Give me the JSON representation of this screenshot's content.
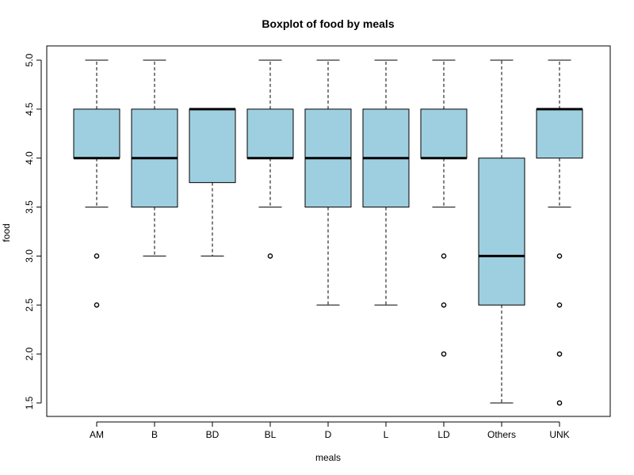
{
  "chart_data": {
    "type": "boxplot",
    "title": "Boxplot of food by meals",
    "xlabel": "meals",
    "ylabel": "food",
    "ylim": [
      1.5,
      5.0
    ],
    "yticks": [
      "1.5",
      "2.0",
      "2.5",
      "3.0",
      "3.5",
      "4.0",
      "4.5",
      "5.0"
    ],
    "box_color": "#9ecfe0",
    "categories": [
      "AM",
      "B",
      "BD",
      "BL",
      "D",
      "L",
      "LD",
      "Others",
      "UNK"
    ],
    "boxes": [
      {
        "label": "AM",
        "whisker_low": 3.5,
        "q1": 4.0,
        "median": 4.0,
        "q3": 4.5,
        "whisker_high": 5.0,
        "outliers": [
          3.0,
          2.5
        ]
      },
      {
        "label": "B",
        "whisker_low": 3.0,
        "q1": 3.5,
        "median": 4.0,
        "q3": 4.5,
        "whisker_high": 5.0,
        "outliers": []
      },
      {
        "label": "BD",
        "whisker_low": 3.0,
        "q1": 3.75,
        "median": 4.5,
        "q3": 4.5,
        "whisker_high": 4.5,
        "outliers": []
      },
      {
        "label": "BL",
        "whisker_low": 3.5,
        "q1": 4.0,
        "median": 4.0,
        "q3": 4.5,
        "whisker_high": 5.0,
        "outliers": [
          3.0
        ]
      },
      {
        "label": "D",
        "whisker_low": 2.5,
        "q1": 3.5,
        "median": 4.0,
        "q3": 4.5,
        "whisker_high": 5.0,
        "outliers": []
      },
      {
        "label": "L",
        "whisker_low": 2.5,
        "q1": 3.5,
        "median": 4.0,
        "q3": 4.5,
        "whisker_high": 5.0,
        "outliers": []
      },
      {
        "label": "LD",
        "whisker_low": 3.5,
        "q1": 4.0,
        "median": 4.0,
        "q3": 4.5,
        "whisker_high": 5.0,
        "outliers": [
          3.0,
          2.5,
          2.0
        ]
      },
      {
        "label": "Others",
        "whisker_low": 1.5,
        "q1": 2.5,
        "median": 3.0,
        "q3": 4.0,
        "whisker_high": 5.0,
        "outliers": []
      },
      {
        "label": "UNK",
        "whisker_low": 3.5,
        "q1": 4.0,
        "median": 4.5,
        "q3": 4.5,
        "whisker_high": 5.0,
        "outliers": [
          3.0,
          2.5,
          2.0,
          1.5
        ]
      }
    ],
    "grid": false,
    "legend": "none"
  }
}
